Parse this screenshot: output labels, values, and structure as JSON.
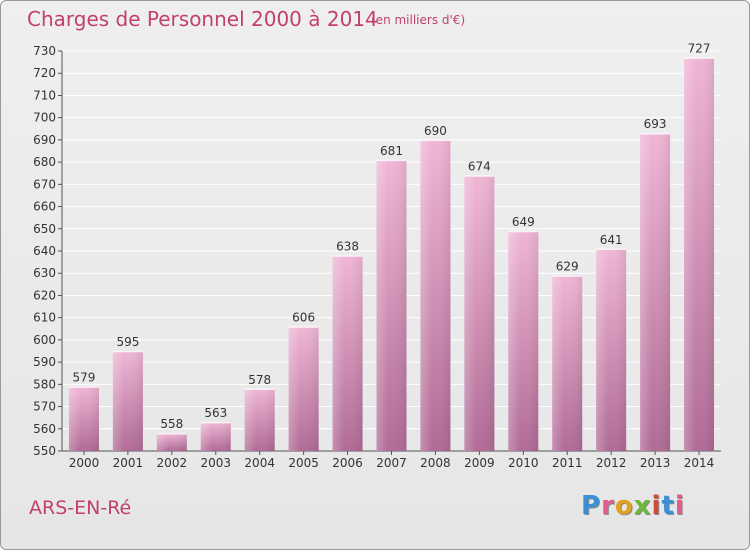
{
  "header": {
    "title": "Charges de Personnel 2000 à 2014",
    "subtitle": "(en milliers d'€)"
  },
  "footer": {
    "commune": "ARS-EN-Ré",
    "logo_text": "Proxiti",
    "logo_letters": [
      "P",
      "r",
      "o",
      "x",
      "i",
      "t",
      "i"
    ]
  },
  "colors": {
    "accent": "#c2406e",
    "bar_light": "#f0b6d6",
    "bar_dark": "#b06b95",
    "grid": "#ffffff"
  },
  "chart_data": {
    "type": "bar",
    "title": "Charges de Personnel 2000 à 2014",
    "subtitle": "(en milliers d'€)",
    "categories": [
      "2000",
      "2001",
      "2002",
      "2003",
      "2004",
      "2005",
      "2006",
      "2007",
      "2008",
      "2009",
      "2010",
      "2011",
      "2012",
      "2013",
      "2014"
    ],
    "values": [
      579,
      595,
      558,
      563,
      578,
      606,
      638,
      681,
      690,
      674,
      649,
      629,
      641,
      693,
      727
    ],
    "ylim": [
      550,
      730
    ],
    "ytick_step": 10,
    "grid": true,
    "xlabel": "",
    "ylabel": ""
  }
}
